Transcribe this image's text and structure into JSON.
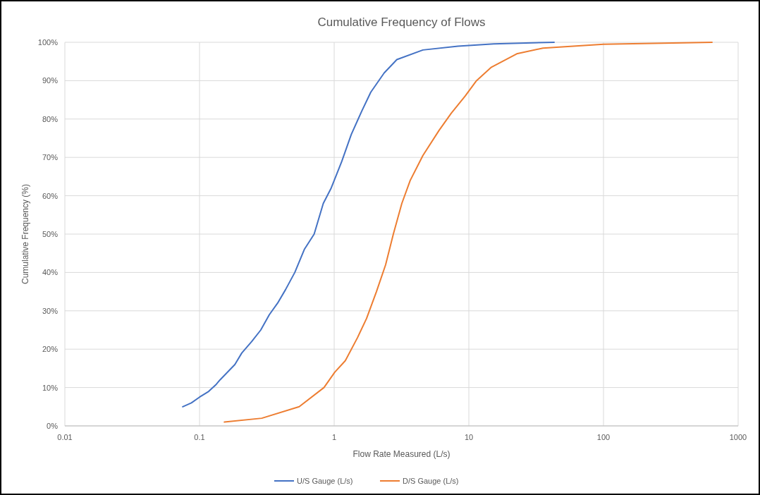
{
  "chart_data": {
    "type": "line",
    "title": "Cumulative Frequency of Flows",
    "xlabel": "Flow Rate Measured (L/s)",
    "ylabel": "Cumulative Frequency (%)",
    "log": "x",
    "grid": true,
    "legend": "bottom",
    "marker": "none",
    "line_style": "solid",
    "xlim": [
      0.01,
      1000
    ],
    "xticks": [
      0.01,
      0.1,
      1,
      10,
      100,
      1000
    ],
    "ylim": [
      0,
      100
    ],
    "yticks": [
      {
        "value": 0,
        "label": "0%"
      },
      {
        "value": 10,
        "label": "10%"
      },
      {
        "value": 20,
        "label": "20%"
      },
      {
        "value": 30,
        "label": "30%"
      },
      {
        "value": 40,
        "label": "40%"
      },
      {
        "value": 50,
        "label": "50%"
      },
      {
        "value": 60,
        "label": "60%"
      },
      {
        "value": 70,
        "label": "70%"
      },
      {
        "value": 80,
        "label": "80%"
      },
      {
        "value": 90,
        "label": "90%"
      },
      {
        "value": 100,
        "label": "100%"
      }
    ],
    "series": [
      {
        "name": "U/S Gauge (L/s)",
        "color": "#4472c4",
        "x": [
          0.075,
          0.087,
          0.1,
          0.117,
          0.132,
          0.142,
          0.183,
          0.206,
          0.244,
          0.285,
          0.33,
          0.38,
          0.435,
          0.51,
          0.6,
          0.71,
          0.83,
          0.95,
          1.14,
          1.34,
          1.6,
          1.87,
          2.35,
          2.92,
          4.56,
          8.3,
          15.3,
          43
        ],
        "values": [
          5,
          6,
          7.5,
          9,
          10.7,
          12,
          16,
          19,
          22,
          25,
          29,
          32,
          35.5,
          40,
          46,
          50,
          58,
          62,
          69,
          76,
          82,
          87,
          92,
          95.5,
          98,
          99,
          99.6,
          100
        ]
      },
      {
        "name": "D/S Gauge (L/s)",
        "color": "#ed7d31",
        "x": [
          0.153,
          0.29,
          0.55,
          0.84,
          1.01,
          1.21,
          1.49,
          1.74,
          2.06,
          2.41,
          2.75,
          3.18,
          3.67,
          4.56,
          6.0,
          7.4,
          9.4,
          11.4,
          14.7,
          22.7,
          35.5,
          100,
          640
        ],
        "values": [
          1,
          2,
          5,
          10,
          14,
          17,
          23,
          28,
          35,
          42,
          50,
          58,
          64,
          70.5,
          77,
          81.5,
          86,
          90,
          93.5,
          97,
          98.5,
          99.5,
          100
        ]
      }
    ]
  }
}
